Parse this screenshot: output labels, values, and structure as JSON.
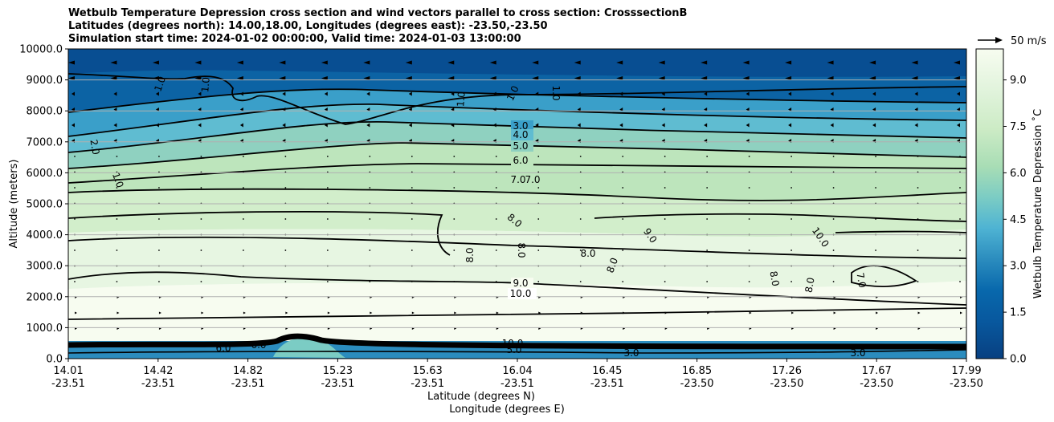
{
  "chart_data": {
    "type": "heatmap",
    "title_lines": [
      "Wetbulb Temperature Depression cross section and wind vectors parallel to cross section: CrosssectionB",
      "Latitudes (degrees north): 14.00,18.00, Longitudes (degrees east): -23.50,-23.50",
      "Simulation start time: 2024-01-02 00:00:00, Valid time: 2024-01-03 13:00:00"
    ],
    "xlabel": "Latitude (degrees N)",
    "xlabel2": "Longitude (degrees E)",
    "ylabel": "Altitude (meters)",
    "ylim": [
      0,
      10000
    ],
    "yticks": [
      "0.0",
      "1000.0",
      "2000.0",
      "3000.0",
      "4000.0",
      "5000.0",
      "6000.0",
      "7000.0",
      "8000.0",
      "9000.0",
      "10000.0"
    ],
    "xticks": [
      {
        "lat": "14.01",
        "lon": "-23.51"
      },
      {
        "lat": "14.42",
        "lon": "-23.51"
      },
      {
        "lat": "14.82",
        "lon": "-23.51"
      },
      {
        "lat": "15.23",
        "lon": "-23.51"
      },
      {
        "lat": "15.63",
        "lon": "-23.51"
      },
      {
        "lat": "16.04",
        "lon": "-23.51"
      },
      {
        "lat": "16.45",
        "lon": "-23.51"
      },
      {
        "lat": "16.85",
        "lon": "-23.50"
      },
      {
        "lat": "17.26",
        "lon": "-23.50"
      },
      {
        "lat": "17.67",
        "lon": "-23.50"
      },
      {
        "lat": "17.99",
        "lon": "-23.50"
      }
    ],
    "colorbar": {
      "label": "Wetbulb Temperature Depression ˚C",
      "range": [
        0,
        10
      ],
      "ticks": [
        "0.0",
        "1.5",
        "3.0",
        "4.5",
        "6.0",
        "7.5",
        "9.0"
      ],
      "colors": [
        "#084081",
        "#08589e",
        "#0868ac",
        "#2b8cbe",
        "#4eb3d3",
        "#7bccc4",
        "#a8ddb5",
        "#ccebc5",
        "#e0f3db",
        "#f7fcf0"
      ]
    },
    "contour_labels": [
      "1.0",
      "2.0",
      "3.0",
      "4.0",
      "5.0",
      "6.0",
      "7.0",
      "8.0",
      "9.0",
      "10.0"
    ],
    "wind_key": "50 m/s"
  }
}
